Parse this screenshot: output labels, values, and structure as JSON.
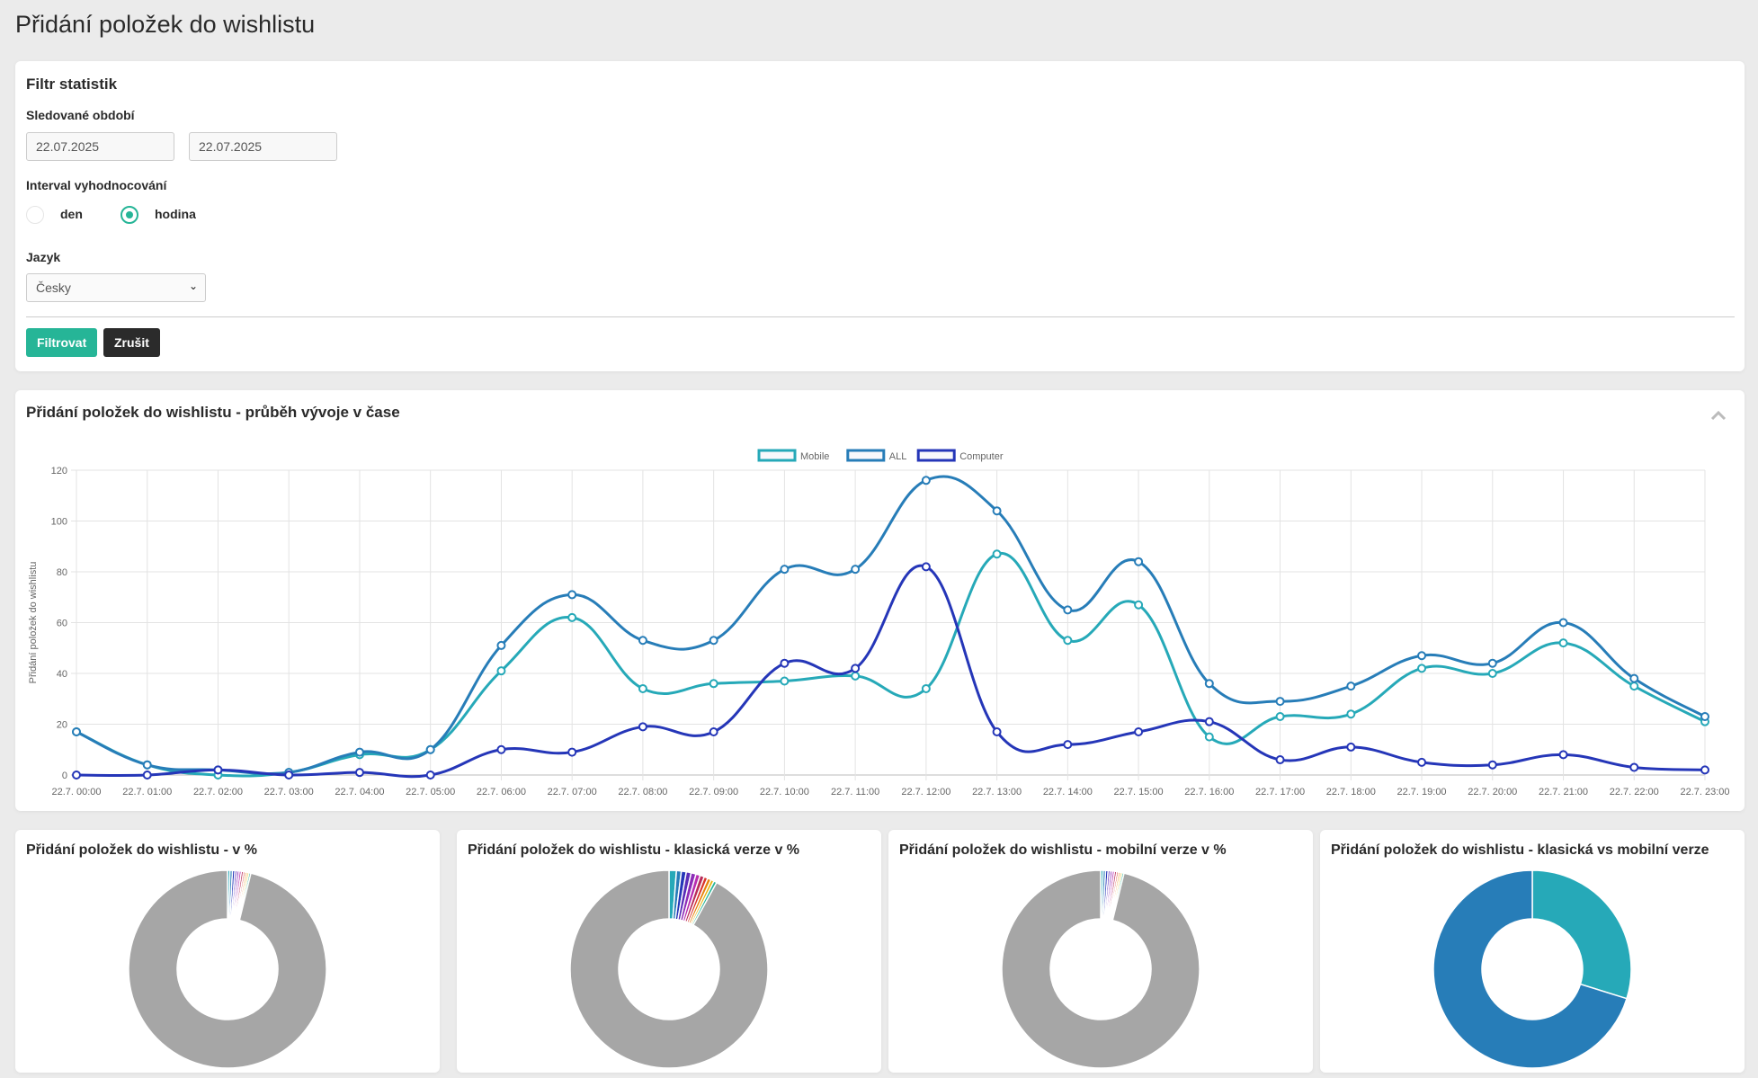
{
  "page_title": "Přidání položek do wishlistu",
  "filter": {
    "title": "Filtr statistik",
    "period_label": "Sledované období",
    "date_from": "22.07.2025",
    "date_to": "22.07.2025",
    "interval_label": "Interval vyhodnocování",
    "interval_options": [
      "den",
      "hodina"
    ],
    "interval_selected": "hodina",
    "language_label": "Jazyk",
    "language_value": "Česky",
    "filter_button": "Filtrovat",
    "cancel_button": "Zrušit",
    "accent_color": "#26b597",
    "cancel_color": "#2b2b2b"
  },
  "line_card": {
    "title": "Přidání položek do wishlistu - průběh vývoje v čase",
    "collapse_icon": "chevron-up-icon"
  },
  "chart_data": [
    {
      "type": "line",
      "ylabel": "Přidání položek do wishlistu",
      "ylim": [
        0,
        120
      ],
      "yticks": [
        "0",
        "20",
        "40",
        "60",
        "80",
        "100",
        "120"
      ],
      "grid": true,
      "legend_position": "top",
      "categories": [
        "22.7. 00:00",
        "22.7. 01:00",
        "22.7. 02:00",
        "22.7. 03:00",
        "22.7. 04:00",
        "22.7. 05:00",
        "22.7. 06:00",
        "22.7. 07:00",
        "22.7. 08:00",
        "22.7. 09:00",
        "22.7. 10:00",
        "22.7. 11:00",
        "22.7. 12:00",
        "22.7. 13:00",
        "22.7. 14:00",
        "22.7. 15:00",
        "22.7. 16:00",
        "22.7. 17:00",
        "22.7. 18:00",
        "22.7. 19:00",
        "22.7. 20:00",
        "22.7. 21:00",
        "22.7. 22:00",
        "22.7. 23:00"
      ],
      "series": [
        {
          "name": "Mobile",
          "color": "#26a9b8",
          "values": [
            17,
            4,
            0,
            1,
            8,
            10,
            41,
            62,
            34,
            36,
            37,
            39,
            34,
            87,
            53,
            67,
            15,
            23,
            24,
            42,
            40,
            52,
            35,
            21
          ]
        },
        {
          "name": "ALL",
          "color": "#277db8",
          "values": [
            17,
            4,
            2,
            1,
            9,
            10,
            51,
            71,
            53,
            53,
            81,
            81,
            116,
            104,
            65,
            84,
            36,
            29,
            35,
            47,
            44,
            60,
            38,
            23
          ]
        },
        {
          "name": "Computer",
          "color": "#2536b8",
          "values": [
            0,
            0,
            2,
            0,
            1,
            0,
            10,
            9,
            19,
            17,
            44,
            42,
            82,
            17,
            12,
            17,
            21,
            6,
            11,
            5,
            4,
            8,
            3,
            2
          ]
        }
      ]
    },
    {
      "type": "pie",
      "title": "Přidání položek do wishlistu - v %",
      "colors": [
        "#26a9b8",
        "#277db8",
        "#2536b8",
        "#5a2db8",
        "#8c2db8",
        "#b82db0",
        "#b82d5a",
        "#d9342b",
        "#e8820c",
        "#e8b40c",
        "#26b597",
        "#a6a6a6"
      ],
      "values": [
        0.4,
        0.4,
        0.4,
        0.35,
        0.35,
        0.35,
        0.35,
        0.3,
        0.3,
        0.3,
        0.3,
        96.0
      ]
    },
    {
      "type": "pie",
      "title": "Přidání položek do wishlistu - klasická verze v %",
      "colors": [
        "#26a9b8",
        "#277db8",
        "#2536b8",
        "#5a2db8",
        "#8c2db8",
        "#b82db0",
        "#b82d5a",
        "#d9342b",
        "#e8820c",
        "#e8b40c",
        "#26b597",
        "#a6a6a6"
      ],
      "values": [
        1.2,
        0.8,
        0.8,
        0.8,
        0.8,
        0.7,
        0.7,
        0.6,
        0.6,
        0.5,
        0.5,
        92.0
      ]
    },
    {
      "type": "pie",
      "title": "Přidání položek do wishlistu - mobilní verze v %",
      "colors": [
        "#26a9b8",
        "#277db8",
        "#2536b8",
        "#5a2db8",
        "#8c2db8",
        "#b82db0",
        "#b82d5a",
        "#d9342b",
        "#e8820c",
        "#e8b40c",
        "#26b597",
        "#a6a6a6"
      ],
      "values": [
        0.4,
        0.4,
        0.4,
        0.35,
        0.35,
        0.35,
        0.35,
        0.3,
        0.3,
        0.3,
        0.3,
        96.0
      ]
    },
    {
      "type": "pie",
      "title": "Přidání položek do wishlistu - klasická vs mobilní verze",
      "colors": [
        "#26a9b8",
        "#277db8"
      ],
      "values": [
        332,
        782
      ]
    }
  ]
}
